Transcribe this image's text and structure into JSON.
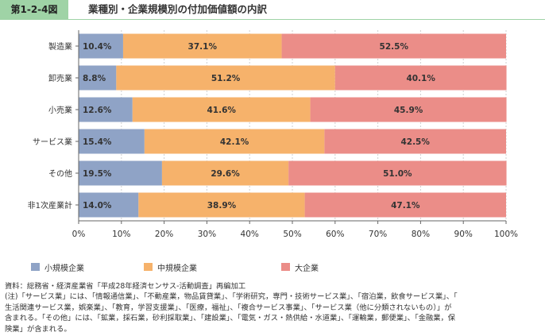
{
  "header": {
    "figure_label": "第1-2-4図",
    "title": "業種別・企業規模別の付加価値額の内訳"
  },
  "chart_data": {
    "type": "bar",
    "orientation": "horizontal",
    "stacked": true,
    "title": "業種別・企業規模別の付加価値額の内訳",
    "categories": [
      "製造業",
      "卸売業",
      "小売業",
      "サービス業",
      "その他",
      "非1次産業計"
    ],
    "series": [
      {
        "name": "小規模企業",
        "values": [
          10.4,
          8.8,
          12.6,
          15.4,
          19.5,
          14.0
        ],
        "labels": [
          "10.4%",
          "8.8%",
          "12.6%",
          "15.4%",
          "19.5%",
          "14.0%"
        ],
        "color": "#8fa3c6"
      },
      {
        "name": "中規模企業",
        "values": [
          37.1,
          51.2,
          41.6,
          42.1,
          29.6,
          38.9
        ],
        "labels": [
          "37.1%",
          "51.2%",
          "41.6%",
          "42.1%",
          "29.6%",
          "38.9%"
        ],
        "color": "#f6b26b"
      },
      {
        "name": "大企業",
        "values": [
          52.5,
          40.1,
          45.9,
          42.5,
          51.0,
          47.1
        ],
        "labels": [
          "52.5%",
          "40.1%",
          "45.9%",
          "42.5%",
          "51.0%",
          "47.1%"
        ],
        "color": "#eb8d88"
      }
    ],
    "xlim": [
      0,
      100
    ],
    "xticks": [
      "0%",
      "10%",
      "20%",
      "30%",
      "40%",
      "50%",
      "60%",
      "70%",
      "80%",
      "90%",
      "100%"
    ],
    "grid": "vertical",
    "legend_position": "bottom"
  },
  "legend": [
    {
      "label": "小規模企業",
      "color": "#8fa3c6"
    },
    {
      "label": "中規模企業",
      "color": "#f6b26b"
    },
    {
      "label": "大企業",
      "color": "#eb8d88"
    }
  ],
  "notes": {
    "source": "資料：総務省・経済産業省「平成28年経済センサス-活動調査」再編加工",
    "note_line1": "(注)「サービス業」には、「情報通信業」、「不動産業，物品賃貸業」、「学術研究，専門・技術サービス業」、「宿泊業，飲食サービス業」、「",
    "note_line2": "生活関連サービス業，娯楽業」、「教育，学習支援業」、「医療，福祉」、「複合サービス事業」、「サービス業（他に分類されないもの）」が",
    "note_line3": "含まれる。「その他」には、「鉱業，採石業，砂利採取業」、「建設業」、「電気・ガス・熱供給・水道業」、「運輸業，郵便業」、「金融業，保",
    "note_line4": "険業」が含まれる。"
  }
}
